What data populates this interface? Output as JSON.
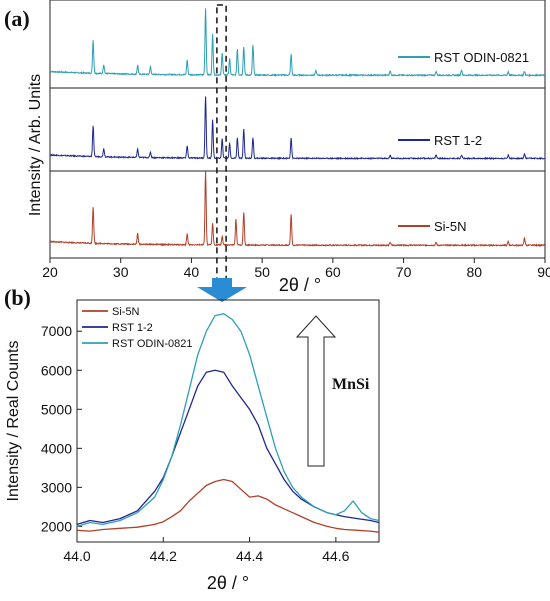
{
  "panel_a": {
    "label": "(a)",
    "ylabel": "Intensity / Arb. Units",
    "xlabel": "2θ / °",
    "xticks": [
      "20",
      "30",
      "40",
      "50",
      "60",
      "70",
      "80",
      "90"
    ],
    "legend": [
      {
        "name": "RST ODIN-0821",
        "color": "#2e9fb4"
      },
      {
        "name": "RST 1-2",
        "color": "#1f2890"
      },
      {
        "name": "Si-5N",
        "color": "#b0402a"
      }
    ]
  },
  "panel_b": {
    "label": "(b)",
    "ylabel": "Intensity / Real Counts",
    "xlabel": "2θ / °",
    "annotation": "MnSi",
    "yticks": [
      "2000",
      "3000",
      "4000",
      "5000",
      "6000",
      "7000"
    ],
    "xticks": [
      "44.0",
      "44.2",
      "44.4",
      "44.6"
    ]
  },
  "chart_data": [
    {
      "type": "line",
      "panel": "a",
      "xlabel": "2θ / °",
      "ylabel": "Intensity / Arb. Units",
      "xlim": [
        20,
        90
      ],
      "highlight_range": [
        43.6,
        44.9
      ],
      "series": [
        {
          "name": "RST ODIN-0821",
          "color": "#2e9fb4",
          "peaks": [
            [
              26.1,
              0.45
            ],
            [
              27.6,
              0.12
            ],
            [
              32.4,
              0.12
            ],
            [
              34.2,
              0.1
            ],
            [
              39.4,
              0.2
            ],
            [
              42.0,
              0.9
            ],
            [
              43.0,
              0.55
            ],
            [
              44.35,
              0.3
            ],
            [
              45.4,
              0.22
            ],
            [
              46.5,
              0.35
            ],
            [
              47.4,
              0.38
            ],
            [
              48.7,
              0.4
            ],
            [
              54.1,
              0.28
            ],
            [
              57.6,
              0.06
            ],
            [
              68.1,
              0.06
            ],
            [
              74.6,
              0.05
            ],
            [
              78.2,
              0.07
            ],
            [
              84.8,
              0.05
            ],
            [
              87.1,
              0.05
            ]
          ]
        },
        {
          "name": "RST 1-2",
          "color": "#1f2890",
          "peaks": [
            [
              26.1,
              0.45
            ],
            [
              27.6,
              0.12
            ],
            [
              32.4,
              0.12
            ],
            [
              34.2,
              0.08
            ],
            [
              39.4,
              0.18
            ],
            [
              42.0,
              0.9
            ],
            [
              43.0,
              0.55
            ],
            [
              44.35,
              0.28
            ],
            [
              45.4,
              0.22
            ],
            [
              46.5,
              0.3
            ],
            [
              47.4,
              0.42
            ],
            [
              48.7,
              0.3
            ],
            [
              54.1,
              0.3
            ],
            [
              68.1,
              0.05
            ],
            [
              74.6,
              0.05
            ],
            [
              78.2,
              0.05
            ],
            [
              84.8,
              0.05
            ],
            [
              87.1,
              0.06
            ]
          ]
        },
        {
          "name": "Si-5N",
          "color": "#b0402a",
          "peaks": [
            [
              26.1,
              0.5
            ],
            [
              32.4,
              0.15
            ],
            [
              39.4,
              0.15
            ],
            [
              42.0,
              1.0
            ],
            [
              43.0,
              0.3
            ],
            [
              44.35,
              0.12
            ],
            [
              46.3,
              0.35
            ],
            [
              47.4,
              0.45
            ],
            [
              54.1,
              0.42
            ],
            [
              68.1,
              0.04
            ],
            [
              74.6,
              0.04
            ],
            [
              84.8,
              0.05
            ],
            [
              87.1,
              0.1
            ]
          ]
        }
      ]
    },
    {
      "type": "line",
      "panel": "b",
      "xlabel": "2θ / °",
      "ylabel": "Intensity / Real Counts",
      "xlim": [
        44.0,
        44.7
      ],
      "ylim": [
        1600,
        7800
      ],
      "series": [
        {
          "name": "Si-5N",
          "color": "#b0402a",
          "x": [
            44.0,
            44.03,
            44.06,
            44.1,
            44.14,
            44.18,
            44.2,
            44.22,
            44.24,
            44.26,
            44.28,
            44.3,
            44.32,
            44.34,
            44.36,
            44.38,
            44.4,
            44.42,
            44.44,
            44.46,
            44.48,
            44.5,
            44.52,
            44.55,
            44.58,
            44.6,
            44.62,
            44.65,
            44.68,
            44.7
          ],
          "y": [
            1900,
            1880,
            1920,
            1950,
            1980,
            2050,
            2120,
            2250,
            2400,
            2650,
            2850,
            3050,
            3150,
            3200,
            3150,
            2950,
            2750,
            2780,
            2700,
            2550,
            2450,
            2350,
            2250,
            2100,
            2000,
            1950,
            1920,
            1900,
            1880,
            1850
          ]
        },
        {
          "name": "RST 1-2",
          "color": "#1f2890",
          "x": [
            44.0,
            44.03,
            44.06,
            44.1,
            44.14,
            44.18,
            44.2,
            44.22,
            44.24,
            44.26,
            44.28,
            44.3,
            44.32,
            44.34,
            44.36,
            44.38,
            44.4,
            44.42,
            44.44,
            44.46,
            44.48,
            44.5,
            44.52,
            44.55,
            44.58,
            44.6,
            44.62,
            44.65,
            44.68,
            44.7
          ],
          "y": [
            2050,
            2150,
            2100,
            2200,
            2400,
            2900,
            3250,
            3800,
            4400,
            5000,
            5600,
            5950,
            6000,
            5950,
            5600,
            5300,
            5000,
            4600,
            4000,
            3600,
            3200,
            2900,
            2700,
            2500,
            2350,
            2300,
            2250,
            2200,
            2150,
            2100
          ]
        },
        {
          "name": "RST ODIN-0821",
          "color": "#2e9fb4",
          "x": [
            44.0,
            44.03,
            44.06,
            44.1,
            44.14,
            44.18,
            44.2,
            44.22,
            44.24,
            44.26,
            44.28,
            44.3,
            44.32,
            44.34,
            44.36,
            44.38,
            44.4,
            44.42,
            44.44,
            44.46,
            44.48,
            44.5,
            44.52,
            44.55,
            44.58,
            44.6,
            44.62,
            44.64,
            44.66,
            44.68,
            44.7
          ],
          "y": [
            2000,
            2100,
            2050,
            2150,
            2350,
            2750,
            3200,
            3800,
            4600,
            5500,
            6400,
            7000,
            7400,
            7450,
            7300,
            7000,
            6400,
            5600,
            4800,
            4000,
            3400,
            3000,
            2750,
            2500,
            2350,
            2300,
            2400,
            2650,
            2350,
            2200,
            2150
          ]
        }
      ]
    }
  ]
}
